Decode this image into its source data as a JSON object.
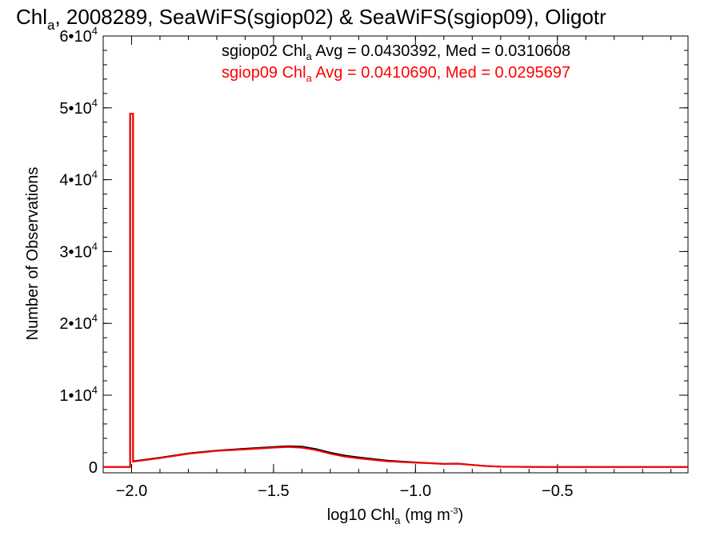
{
  "chart_data": {
    "type": "line",
    "title": {
      "prefix": "Chl",
      "sub": "a",
      "rest": ", 2008289, SeaWiFS(sgiop02) & SeaWiFS(sgiop09), Oligotr"
    },
    "xlabel": {
      "prefix": "log10 Chl",
      "sub": "a",
      "mid": " (mg m",
      "sup": "-3",
      "suffix": ")"
    },
    "ylabel": "Number of Observations",
    "xlim": [
      -2.1,
      -0.04
    ],
    "ylim": [
      -800,
      60000
    ],
    "xticks": [
      {
        "value": -2.0,
        "label": "−2.0"
      },
      {
        "value": -1.5,
        "label": "−1.5"
      },
      {
        "value": -1.0,
        "label": "−1.0"
      },
      {
        "value": -0.5,
        "label": "−0.5"
      }
    ],
    "yticks": [
      {
        "value": 0,
        "base": "0",
        "exp": ""
      },
      {
        "value": 10000,
        "base": "1•10",
        "exp": "4"
      },
      {
        "value": 20000,
        "base": "2•10",
        "exp": "4"
      },
      {
        "value": 30000,
        "base": "3•10",
        "exp": "4"
      },
      {
        "value": 40000,
        "base": "4•10",
        "exp": "4"
      },
      {
        "value": 50000,
        "base": "5•10",
        "exp": "4"
      },
      {
        "value": 60000,
        "base": "6•10",
        "exp": "4"
      }
    ],
    "series": [
      {
        "name": "sgiop02",
        "color": "#000000",
        "x": [
          -2.1,
          -2.005,
          -2.005,
          -1.995,
          -1.995,
          -1.9,
          -1.8,
          -1.7,
          -1.6,
          -1.5,
          -1.45,
          -1.4,
          -1.35,
          -1.3,
          -1.25,
          -1.2,
          -1.1,
          -1.0,
          -0.95,
          -0.9,
          -0.85,
          -0.8,
          -0.75,
          -0.7,
          -0.6,
          -0.5,
          -0.4,
          -0.3,
          -0.04
        ],
        "y": [
          0,
          0,
          49200,
          49200,
          800,
          1300,
          1900,
          2300,
          2550,
          2800,
          2900,
          2850,
          2500,
          2000,
          1600,
          1350,
          900,
          650,
          550,
          450,
          480,
          300,
          150,
          60,
          20,
          0,
          0,
          0,
          0
        ]
      },
      {
        "name": "sgiop09",
        "color": "#ff0000",
        "x": [
          -2.1,
          -2.005,
          -2.005,
          -1.995,
          -1.995,
          -1.9,
          -1.8,
          -1.7,
          -1.6,
          -1.5,
          -1.45,
          -1.4,
          -1.35,
          -1.3,
          -1.25,
          -1.2,
          -1.1,
          -1.0,
          -0.95,
          -0.9,
          -0.85,
          -0.8,
          -0.75,
          -0.7,
          -0.6,
          -0.5,
          -0.4,
          -0.3,
          -0.04
        ],
        "y": [
          0,
          0,
          49200,
          49200,
          750,
          1250,
          1850,
          2250,
          2450,
          2700,
          2800,
          2700,
          2350,
          1850,
          1450,
          1200,
          800,
          600,
          520,
          430,
          450,
          280,
          140,
          50,
          15,
          0,
          0,
          0,
          0
        ]
      }
    ],
    "annotations": [
      {
        "color": "#000000",
        "prefix": "sgiop02 Chl",
        "sub": "a",
        "rest": " Avg = 0.0430392, Med = 0.0310608"
      },
      {
        "color": "#ff0000",
        "prefix": "sgiop09 Chl",
        "sub": "a",
        "rest": " Avg = 0.0410690, Med = 0.0295697"
      }
    ],
    "grid": false,
    "legend": "none"
  }
}
